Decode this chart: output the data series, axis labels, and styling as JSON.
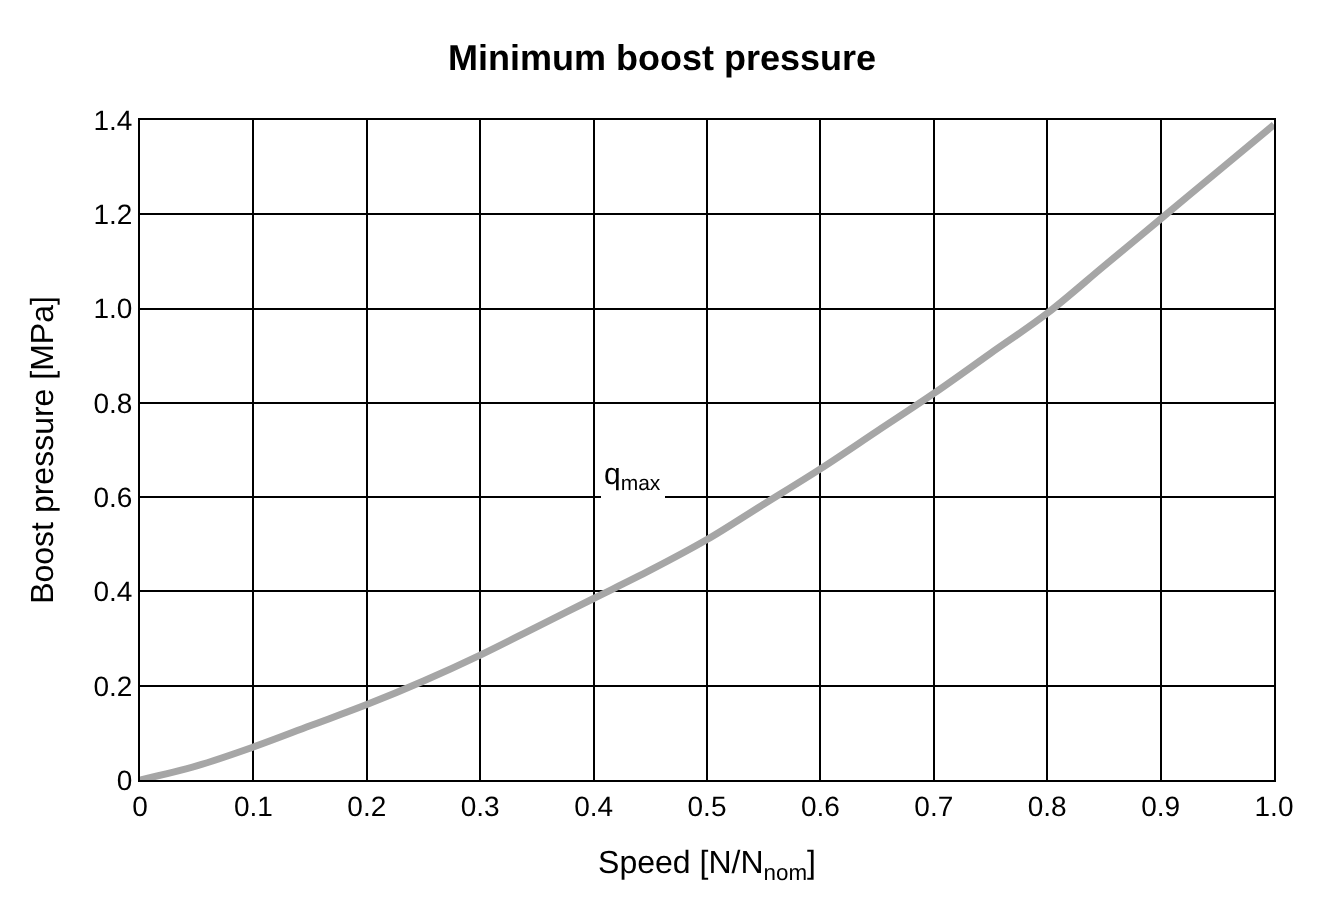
{
  "chart_data": {
    "type": "line",
    "title": "Minimum boost pressure",
    "xlabel": "Speed [N/N$_{nom}$]",
    "ylabel": "Boost pressure [MPa]",
    "x": [
      0,
      0.05,
      0.1,
      0.15,
      0.2,
      0.25,
      0.3,
      0.35,
      0.4,
      0.45,
      0.5,
      0.55,
      0.6,
      0.65,
      0.7,
      0.75,
      0.8,
      0.85,
      0.9,
      0.95,
      1.0
    ],
    "series": [
      {
        "color": "#a6a6a6",
        "values": [
          0,
          0.03,
          0.07,
          0.115,
          0.16,
          0.21,
          0.265,
          0.325,
          0.385,
          0.445,
          0.51,
          0.585,
          0.66,
          0.74,
          0.82,
          0.905,
          0.99,
          1.09,
          1.19,
          1.29,
          1.39
        ]
      }
    ],
    "annotations": [
      "q$_{max}$"
    ],
    "xlim": [
      0,
      1
    ],
    "xticks": [
      0,
      0.1,
      0.2,
      0.3,
      0.4,
      0.5,
      0.6,
      0.7,
      0.8,
      0.9,
      {
        "value": 1,
        "label": "1.0"
      }
    ],
    "ylim": [
      0,
      1.4
    ],
    "yticks": [
      0,
      0.2,
      0.4,
      0.6,
      0.8,
      {
        "value": 1,
        "label": "1.0"
      },
      1.2,
      1.4
    ],
    "grid": true,
    "marker": "none",
    "line_style": "solid"
  }
}
